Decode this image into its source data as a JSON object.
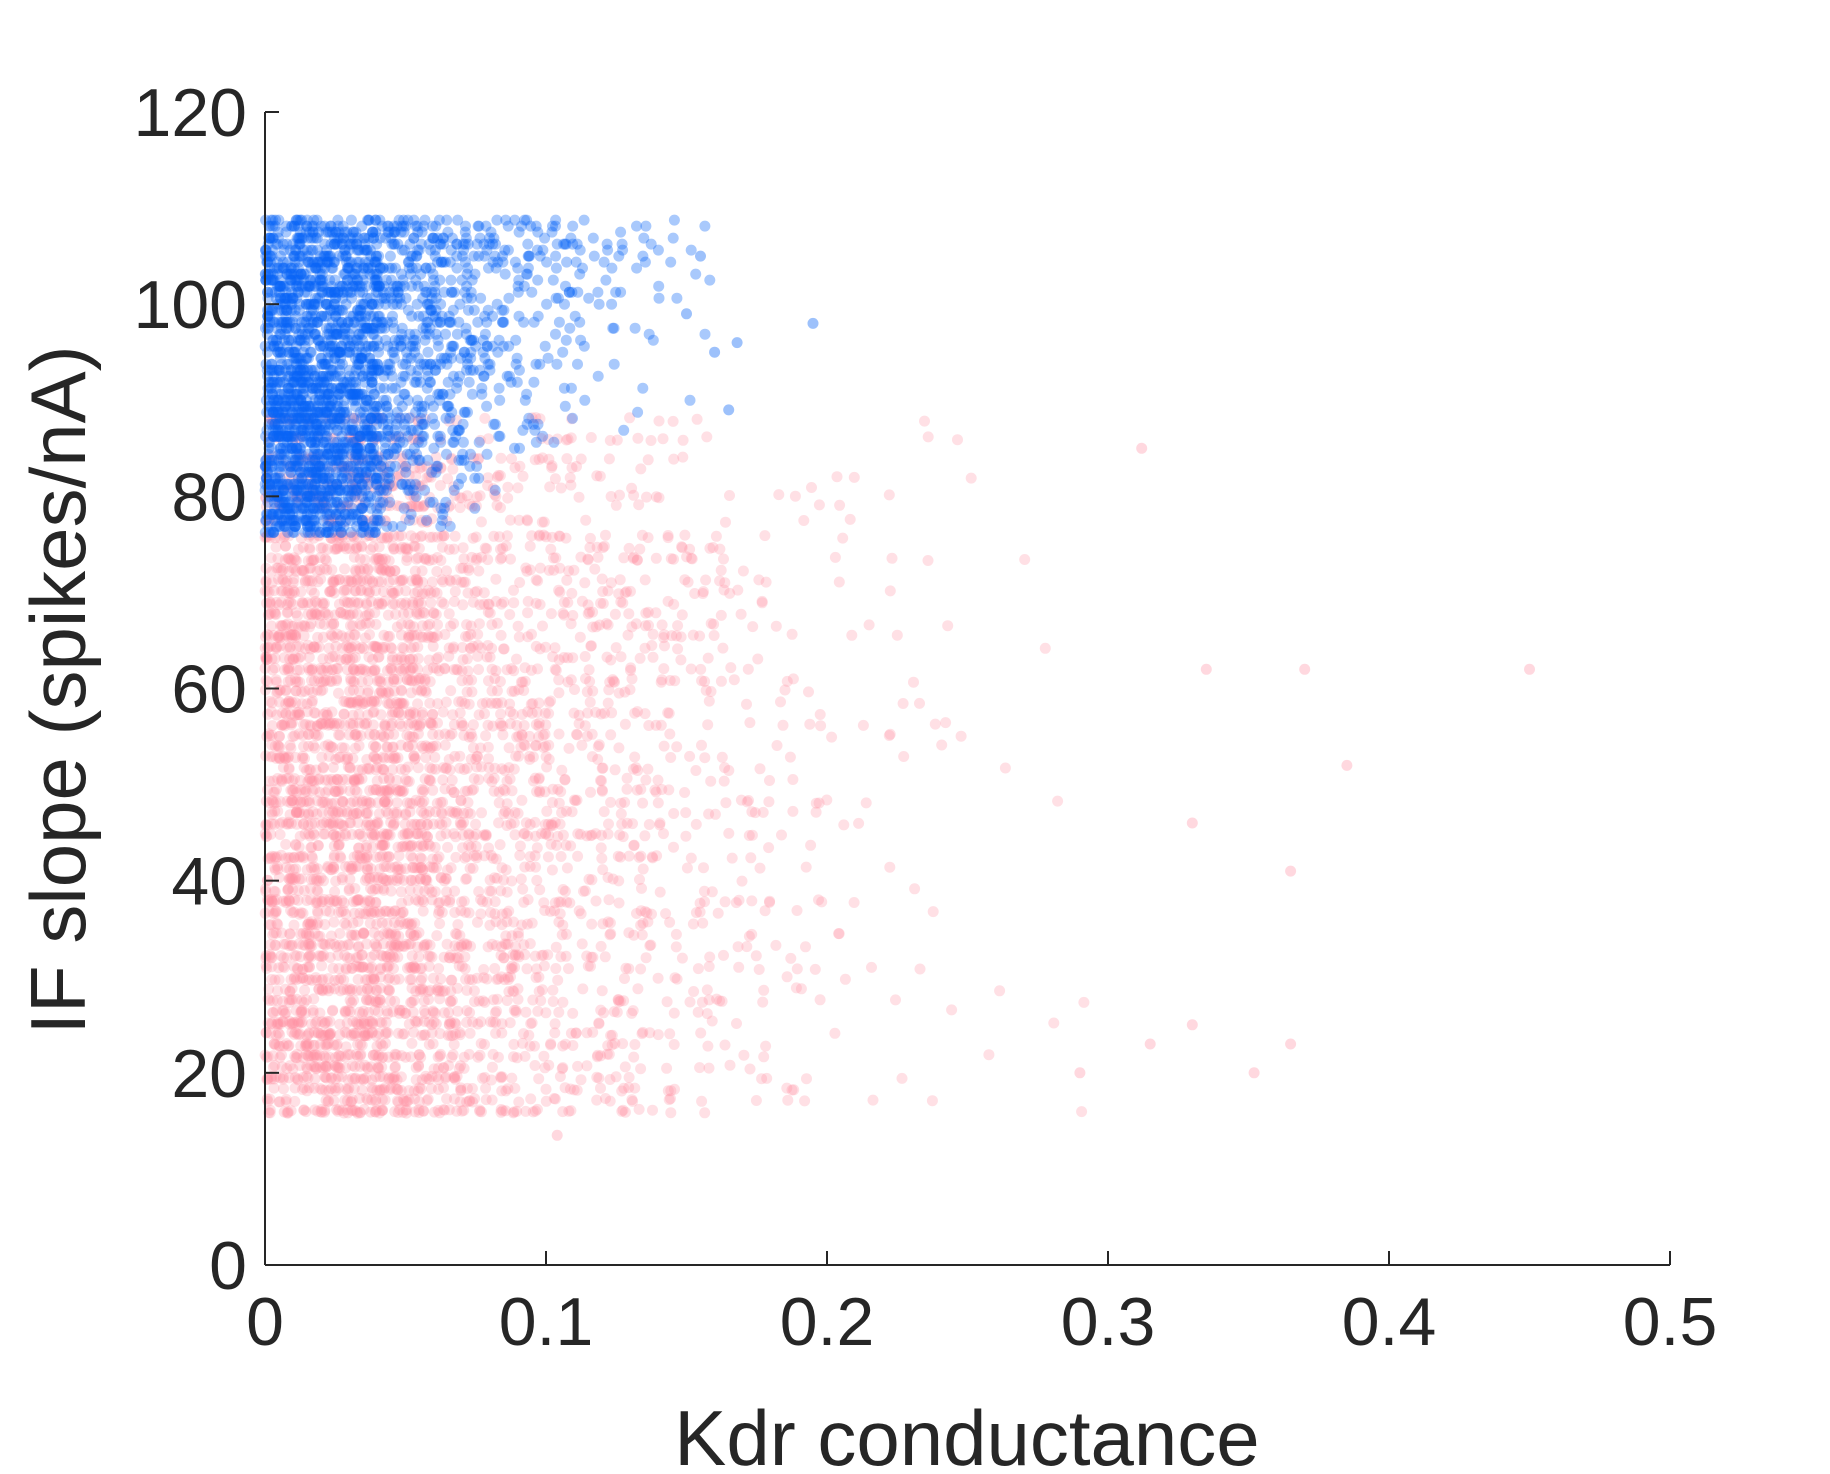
{
  "chart_data": {
    "type": "scatter",
    "title": "",
    "xlabel": "Kdr conductance",
    "ylabel": "IF slope (spikes/nA)",
    "xlim": [
      0,
      0.5
    ],
    "ylim": [
      0,
      120
    ],
    "xticks": [
      "0",
      "0.1",
      "0.2",
      "0.3",
      "0.4",
      "0.5"
    ],
    "yticks": [
      "0",
      "20",
      "40",
      "60",
      "80",
      "100",
      "120"
    ],
    "grid": false,
    "legend": "none",
    "series": [
      {
        "color": "#ff8fa3",
        "opacity": 0.28,
        "x_range": [
          0,
          0.45
        ],
        "y_range": [
          14,
          88
        ],
        "count": 4200,
        "outlier_points": [
          [
            0.45,
            62
          ],
          [
            0.385,
            52
          ],
          [
            0.37,
            62
          ],
          [
            0.365,
            41
          ],
          [
            0.352,
            20
          ],
          [
            0.335,
            62
          ],
          [
            0.33,
            25
          ],
          [
            0.315,
            23
          ],
          [
            0.312,
            85
          ],
          [
            0.104,
            13.5
          ],
          [
            0.365,
            23
          ],
          [
            0.33,
            46
          ],
          [
            0.29,
            20
          ]
        ]
      },
      {
        "color": "#0a64f5",
        "opacity": 0.35,
        "x_range": [
          0,
          0.195
        ],
        "y_range": [
          76,
          109
        ],
        "count": 2400,
        "outlier_points": [
          [
            0.195,
            98
          ],
          [
            0.168,
            96
          ],
          [
            0.16,
            95
          ],
          [
            0.155,
            105
          ],
          [
            0.165,
            89
          ],
          [
            0.15,
            99
          ]
        ]
      }
    ]
  }
}
